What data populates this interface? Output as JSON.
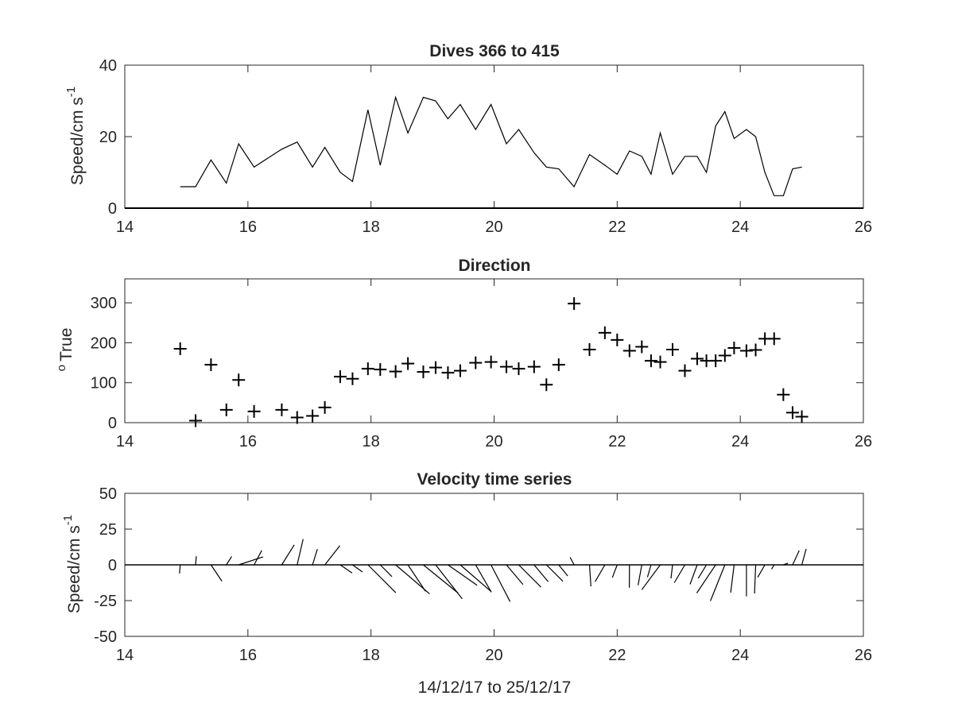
{
  "figure": {
    "xlabel": "14/12/17 to 25/12/17"
  },
  "chart_data": [
    {
      "type": "line",
      "title": "Dives 366 to 415",
      "ylabel": "Speed/cm s",
      "ylabel_superscript": "-1",
      "xlim": [
        14,
        26
      ],
      "ylim": [
        0,
        40
      ],
      "xticks": [
        "14",
        "16",
        "18",
        "20",
        "22",
        "24",
        "26"
      ],
      "yticks": [
        "0",
        "20",
        "40"
      ],
      "x": [
        14.9,
        15.15,
        15.4,
        15.65,
        15.85,
        16.1,
        16.55,
        16.8,
        17.05,
        17.25,
        17.5,
        17.7,
        17.95,
        18.15,
        18.4,
        18.6,
        18.85,
        19.05,
        19.25,
        19.45,
        19.7,
        19.95,
        20.2,
        20.4,
        20.65,
        20.85,
        21.05,
        21.3,
        21.55,
        21.8,
        22.0,
        22.2,
        22.4,
        22.55,
        22.7,
        22.9,
        23.1,
        23.3,
        23.45,
        23.6,
        23.75,
        23.9,
        24.1,
        24.25,
        24.4,
        24.55,
        24.7,
        24.85,
        25.0
      ],
      "values": [
        6,
        6,
        13.5,
        7,
        18,
        11.5,
        16.5,
        18.5,
        11.5,
        17,
        10,
        7.5,
        27.5,
        12,
        31,
        21,
        31,
        30,
        25,
        29,
        22,
        29,
        18,
        22,
        15.5,
        11.5,
        11,
        6,
        15,
        12,
        9.5,
        16,
        14.5,
        9.5,
        21,
        9.5,
        14.5,
        14.5,
        10,
        23,
        27,
        19.5,
        22,
        20,
        10,
        3.5,
        3.5,
        11,
        11.5
      ],
      "grid": false,
      "legend": "none"
    },
    {
      "type": "scatter",
      "title": "Direction",
      "ylabel": "True",
      "ylabel_prefix": "o",
      "xlim": [
        14,
        26
      ],
      "ylim": [
        0,
        360
      ],
      "xticks": [
        "14",
        "16",
        "18",
        "20",
        "22",
        "24",
        "26"
      ],
      "yticks": [
        "0",
        "100",
        "200",
        "300"
      ],
      "x": [
        14.9,
        15.15,
        15.4,
        15.65,
        15.85,
        16.1,
        16.55,
        16.8,
        17.05,
        17.25,
        17.5,
        17.7,
        17.95,
        18.15,
        18.4,
        18.6,
        18.85,
        19.05,
        19.25,
        19.45,
        19.7,
        19.95,
        20.2,
        20.4,
        20.65,
        20.85,
        21.05,
        21.3,
        21.55,
        21.8,
        22.0,
        22.2,
        22.4,
        22.55,
        22.7,
        22.9,
        23.1,
        23.3,
        23.45,
        23.6,
        23.75,
        23.9,
        24.1,
        24.25,
        24.4,
        24.55,
        24.7,
        24.85,
        25.0
      ],
      "values": [
        185,
        5,
        145,
        32,
        107,
        28,
        32,
        13,
        17,
        38,
        115,
        110,
        135,
        133,
        128,
        148,
        127,
        138,
        125,
        130,
        150,
        152,
        140,
        135,
        140,
        95,
        145,
        298,
        183,
        225,
        207,
        180,
        190,
        155,
        152,
        183,
        130,
        160,
        155,
        155,
        168,
        187,
        180,
        182,
        210,
        210,
        70,
        25,
        15
      ],
      "marker": "+",
      "grid": false,
      "legend": "none"
    },
    {
      "type": "line",
      "title": "Velocity time series",
      "ylabel": "Speed/cm s",
      "ylabel_superscript": "-1",
      "xlim": [
        14,
        26
      ],
      "ylim": [
        -50,
        50
      ],
      "xticks": [
        "14",
        "16",
        "18",
        "20",
        "22",
        "24",
        "26"
      ],
      "yticks": [
        "-50",
        "-25",
        "0",
        "25",
        "50"
      ],
      "x": [
        14.9,
        15.15,
        15.4,
        15.65,
        15.85,
        16.1,
        16.55,
        16.8,
        17.05,
        17.25,
        17.5,
        17.7,
        17.95,
        18.15,
        18.4,
        18.6,
        18.85,
        19.05,
        19.25,
        19.45,
        19.7,
        19.95,
        20.2,
        20.4,
        20.65,
        20.85,
        21.05,
        21.3,
        21.55,
        21.8,
        22.0,
        22.2,
        22.4,
        22.55,
        22.7,
        22.9,
        23.1,
        23.3,
        23.45,
        23.6,
        23.75,
        23.9,
        24.1,
        24.25,
        24.4,
        24.55,
        24.7,
        24.85,
        25.0
      ],
      "u": [
        -0.5,
        0.5,
        7.6,
        3.7,
        17.1,
        5.4,
        8.7,
        4.2,
        3.4,
        10.5,
        8.3,
        7.0,
        19.5,
        8.2,
        23.7,
        12.3,
        24.3,
        18.6,
        20.4,
        21.7,
        11.0,
        13.3,
        11.6,
        15.6,
        9.9,
        11.5,
        6.3,
        -2.8,
        1.0,
        -6.8,
        -3.4,
        -0.1,
        -2.6,
        -2.5,
        -12.9,
        -1.1,
        -7.4,
        -5.0,
        -5.7,
        -13.2,
        -10.1,
        -2.4,
        0.0,
        -0.8,
        -5.0,
        -1.8,
        3.3,
        4.6,
        3.0
      ],
      "v": [
        -6.0,
        6.0,
        -11.4,
        5.9,
        5.6,
        10.1,
        14.0,
        18.0,
        11.0,
        13.4,
        -5.7,
        -5.0,
        -19.5,
        -8.2,
        -20.2,
        -18.5,
        -19.7,
        -23.8,
        -14.3,
        -18.8,
        -19.1,
        -25.7,
        -13.8,
        -15.6,
        -11.8,
        -11.5,
        -7.8,
        5.3,
        -15.0,
        -11.8,
        -9.0,
        -16.0,
        -14.3,
        -8.6,
        -17.4,
        -9.5,
        -12.5,
        -13.6,
        -9.4,
        -19.7,
        -25.3,
        -19.4,
        -22.0,
        -20.0,
        -8.7,
        -3.0,
        1.2,
        10.0,
        11.1
      ],
      "grid": false,
      "legend": "none"
    }
  ]
}
